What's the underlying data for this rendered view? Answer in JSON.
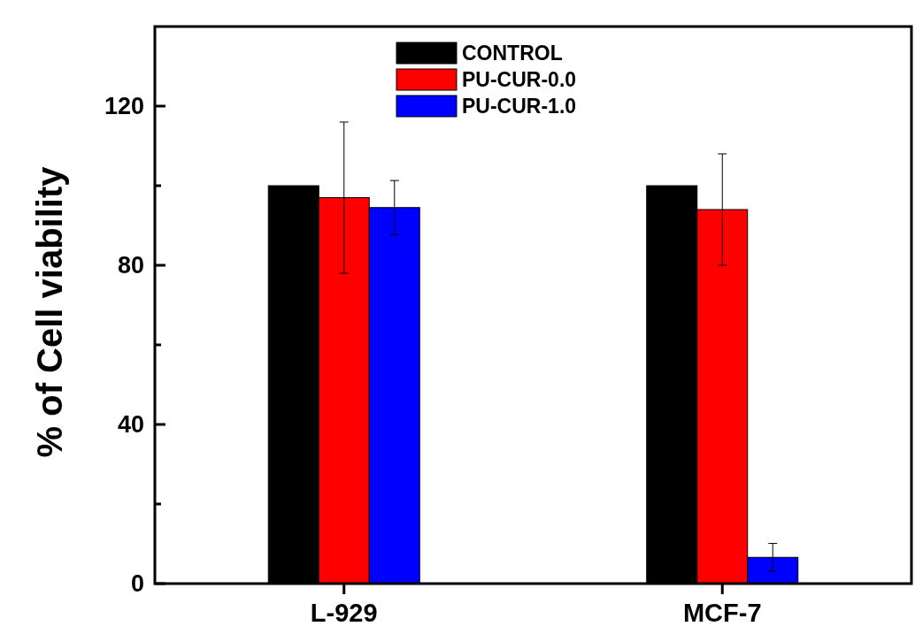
{
  "chart_data": {
    "type": "bar",
    "ylabel": "% of Cell viability",
    "categories": [
      "L-929",
      "MCF-7"
    ],
    "series": [
      {
        "name": "CONTROL",
        "color": "#000000",
        "values": [
          100,
          100
        ]
      },
      {
        "name": "PU-CUR-0.0",
        "color": "#ff0000",
        "values": [
          97,
          94
        ],
        "errors": [
          19,
          14
        ]
      },
      {
        "name": "PU-CUR-1.0",
        "color": "#0000ff",
        "values": [
          94.5,
          6.6
        ],
        "errors": [
          6.8,
          3.5
        ]
      }
    ],
    "ylim": [
      0,
      140
    ],
    "yticks": [
      0,
      {
        "value": 20,
        "label": null
      },
      40,
      {
        "value": 60,
        "label": null
      },
      80,
      {
        "value": 100,
        "label": null
      },
      120
    ],
    "legend": "top",
    "grid": false
  }
}
